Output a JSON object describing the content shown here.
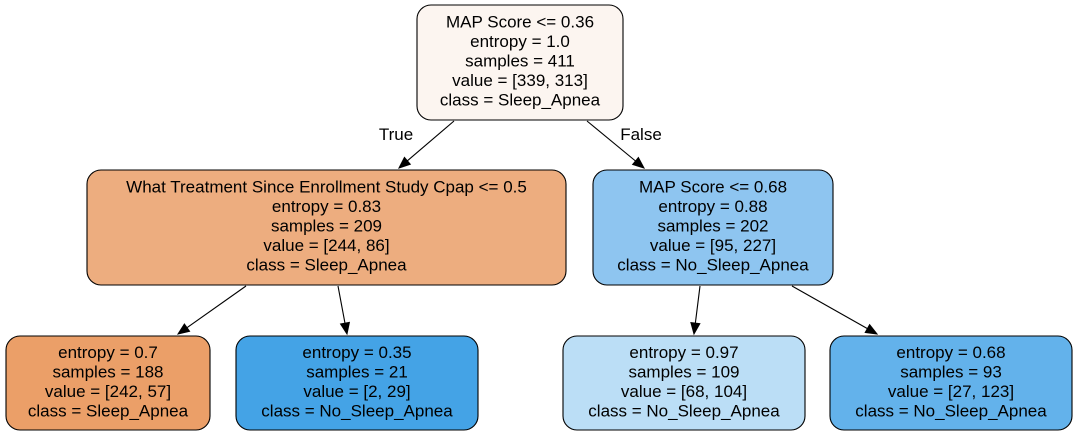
{
  "tree": {
    "nodes": [
      {
        "id": "root",
        "fill": "#fcf5f0",
        "lines": [
          "MAP Score <= 0.36",
          "entropy = 1.0",
          "samples = 411",
          "value = [339, 313]",
          "class = Sleep_Apnea"
        ]
      },
      {
        "id": "left",
        "fill": "#edad7f",
        "lines": [
          "What Treatment Since Enrollment Study Cpap <= 0.5",
          "entropy = 0.83",
          "samples = 209",
          "value = [244, 86]",
          "class = Sleep_Apnea"
        ]
      },
      {
        "id": "right",
        "fill": "#8ec5f0",
        "lines": [
          "MAP Score <= 0.68",
          "entropy = 0.88",
          "samples = 202",
          "value = [95, 227]",
          "class = No_Sleep_Apnea"
        ]
      },
      {
        "id": "leaf1",
        "fill": "#eb9f68",
        "lines": [
          "entropy = 0.7",
          "samples = 188",
          "value = [242, 57]",
          "class = Sleep_Apnea"
        ]
      },
      {
        "id": "leaf2",
        "fill": "#44a3e6",
        "lines": [
          "entropy = 0.35",
          "samples = 21",
          "value = [2, 29]",
          "class = No_Sleep_Apnea"
        ]
      },
      {
        "id": "leaf3",
        "fill": "#bbdef6",
        "lines": [
          "entropy = 0.97",
          "samples = 109",
          "value = [68, 104]",
          "class = No_Sleep_Apnea"
        ]
      },
      {
        "id": "leaf4",
        "fill": "#63b2eb",
        "lines": [
          "entropy = 0.68",
          "samples = 93",
          "value = [27, 123]",
          "class = No_Sleep_Apnea"
        ]
      }
    ],
    "edges": [
      {
        "from": "root",
        "to": "left",
        "label": "True"
      },
      {
        "from": "root",
        "to": "right",
        "label": "False"
      },
      {
        "from": "left",
        "to": "leaf1",
        "label": ""
      },
      {
        "from": "left",
        "to": "leaf2",
        "label": ""
      },
      {
        "from": "right",
        "to": "leaf3",
        "label": ""
      },
      {
        "from": "right",
        "to": "leaf4",
        "label": ""
      }
    ]
  }
}
